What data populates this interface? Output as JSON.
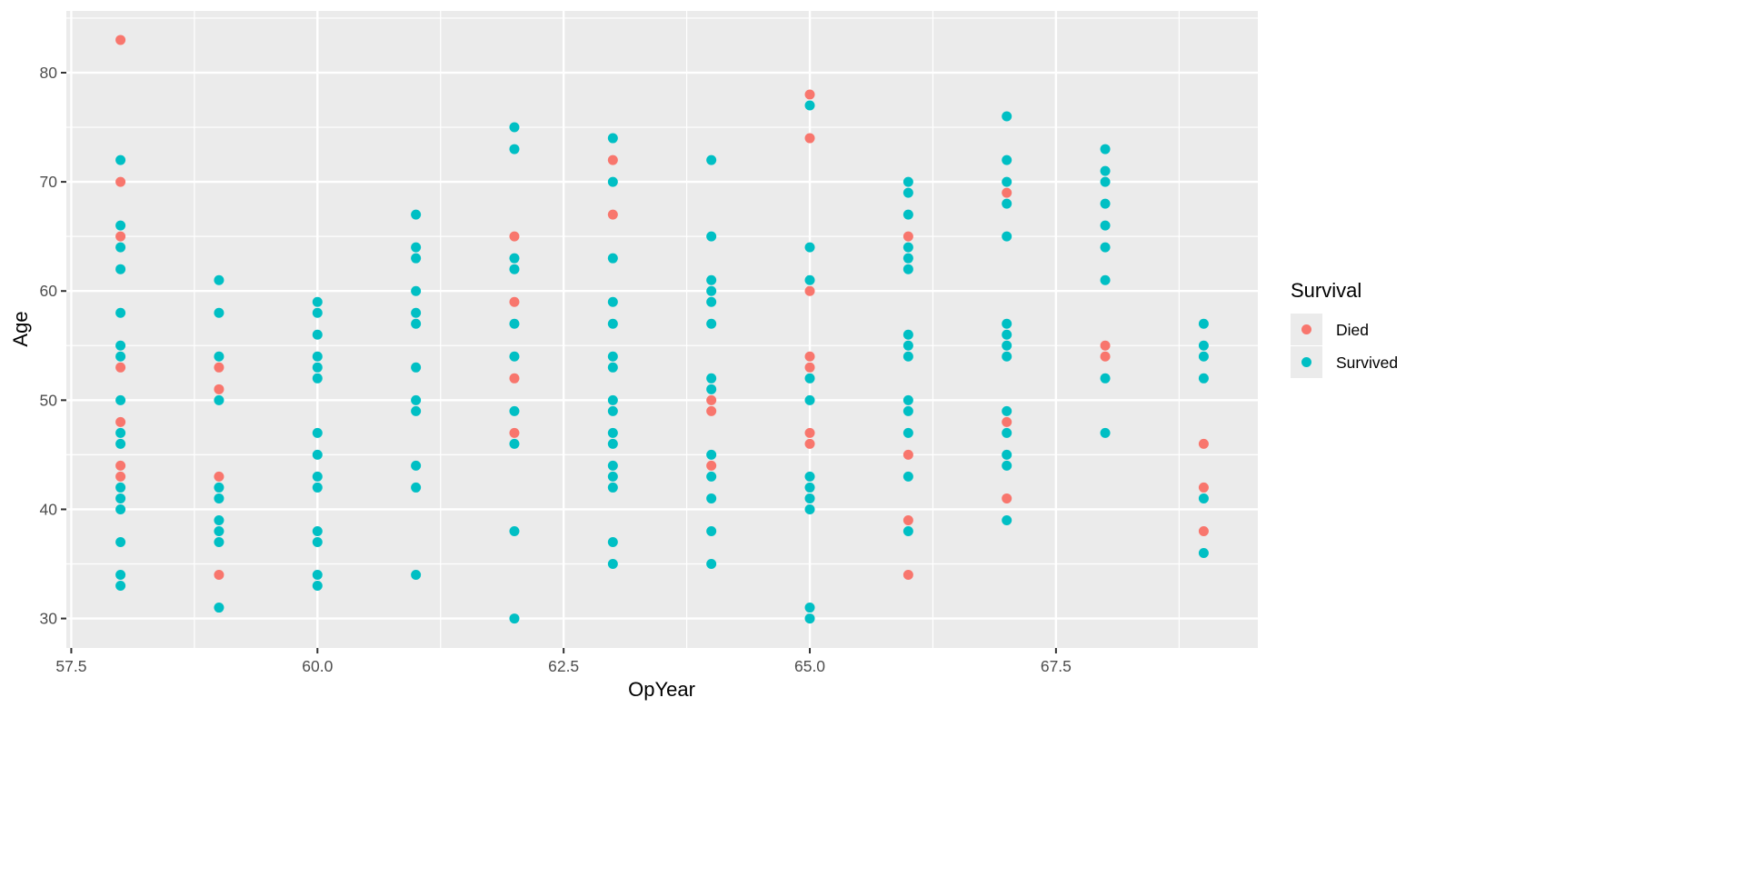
{
  "chart_data": {
    "type": "scatter",
    "title": "",
    "xlabel": "OpYear",
    "ylabel": "Age",
    "xlim": [
      57.45,
      69.55
    ],
    "ylim": [
      27.3,
      85.66
    ],
    "xticks": [
      57.5,
      60.0,
      62.5,
      65.0,
      67.5
    ],
    "xtick_labels": [
      "57.5",
      "60.0",
      "62.5",
      "65.0",
      "67.5"
    ],
    "yticks": [
      30,
      40,
      50,
      60,
      70,
      80
    ],
    "ytick_labels": [
      "30",
      "40",
      "50",
      "60",
      "70",
      "80"
    ],
    "grid": true,
    "legend": {
      "title": "Survival",
      "placement": "right",
      "entries": [
        "Died",
        "Survived"
      ]
    },
    "colors": {
      "Died": "#F8766D",
      "Survived": "#00BFC4",
      "panel": "#EBEBEB",
      "grid": "#FFFFFF"
    },
    "series": [
      {
        "name": "Died",
        "points": [
          [
            58,
            83
          ],
          [
            58,
            70
          ],
          [
            58,
            65
          ],
          [
            58,
            53
          ],
          [
            58,
            48
          ],
          [
            58,
            44
          ],
          [
            58,
            43
          ],
          [
            59,
            53
          ],
          [
            59,
            51
          ],
          [
            59,
            43
          ],
          [
            59,
            34
          ],
          [
            62,
            65
          ],
          [
            62,
            59
          ],
          [
            62,
            52
          ],
          [
            62,
            47
          ],
          [
            63,
            72
          ],
          [
            63,
            67
          ],
          [
            64,
            50
          ],
          [
            64,
            49
          ],
          [
            64,
            44
          ],
          [
            65,
            78
          ],
          [
            65,
            74
          ],
          [
            65,
            60
          ],
          [
            65,
            54
          ],
          [
            65,
            53
          ],
          [
            65,
            47
          ],
          [
            65,
            46
          ],
          [
            66,
            65
          ],
          [
            66,
            45
          ],
          [
            66,
            39
          ],
          [
            66,
            34
          ],
          [
            67,
            69
          ],
          [
            67,
            48
          ],
          [
            67,
            41
          ],
          [
            68,
            55
          ],
          [
            68,
            54
          ],
          [
            69,
            46
          ],
          [
            69,
            42
          ],
          [
            69,
            38
          ]
        ]
      },
      {
        "name": "Survived",
        "points": [
          [
            58,
            72
          ],
          [
            58,
            66
          ],
          [
            58,
            64
          ],
          [
            58,
            62
          ],
          [
            58,
            58
          ],
          [
            58,
            55
          ],
          [
            58,
            54
          ],
          [
            58,
            50
          ],
          [
            58,
            47
          ],
          [
            58,
            46
          ],
          [
            58,
            42
          ],
          [
            58,
            41
          ],
          [
            58,
            40
          ],
          [
            58,
            37
          ],
          [
            58,
            34
          ],
          [
            58,
            33
          ],
          [
            59,
            61
          ],
          [
            59,
            58
          ],
          [
            59,
            54
          ],
          [
            59,
            50
          ],
          [
            59,
            42
          ],
          [
            59,
            41
          ],
          [
            59,
            39
          ],
          [
            59,
            38
          ],
          [
            59,
            37
          ],
          [
            59,
            31
          ],
          [
            60,
            59
          ],
          [
            60,
            58
          ],
          [
            60,
            56
          ],
          [
            60,
            54
          ],
          [
            60,
            53
          ],
          [
            60,
            52
          ],
          [
            60,
            47
          ],
          [
            60,
            45
          ],
          [
            60,
            43
          ],
          [
            60,
            42
          ],
          [
            60,
            38
          ],
          [
            60,
            37
          ],
          [
            60,
            34
          ],
          [
            60,
            33
          ],
          [
            61,
            67
          ],
          [
            61,
            64
          ],
          [
            61,
            63
          ],
          [
            61,
            60
          ],
          [
            61,
            58
          ],
          [
            61,
            57
          ],
          [
            61,
            53
          ],
          [
            61,
            50
          ],
          [
            61,
            49
          ],
          [
            61,
            44
          ],
          [
            61,
            42
          ],
          [
            61,
            34
          ],
          [
            62,
            75
          ],
          [
            62,
            73
          ],
          [
            62,
            63
          ],
          [
            62,
            62
          ],
          [
            62,
            57
          ],
          [
            62,
            54
          ],
          [
            62,
            49
          ],
          [
            62,
            46
          ],
          [
            62,
            38
          ],
          [
            62,
            30
          ],
          [
            63,
            74
          ],
          [
            63,
            70
          ],
          [
            63,
            63
          ],
          [
            63,
            59
          ],
          [
            63,
            57
          ],
          [
            63,
            54
          ],
          [
            63,
            53
          ],
          [
            63,
            50
          ],
          [
            63,
            49
          ],
          [
            63,
            47
          ],
          [
            63,
            46
          ],
          [
            63,
            44
          ],
          [
            63,
            43
          ],
          [
            63,
            42
          ],
          [
            63,
            37
          ],
          [
            63,
            35
          ],
          [
            64,
            72
          ],
          [
            64,
            65
          ],
          [
            64,
            61
          ],
          [
            64,
            60
          ],
          [
            64,
            59
          ],
          [
            64,
            57
          ],
          [
            64,
            52
          ],
          [
            64,
            51
          ],
          [
            64,
            45
          ],
          [
            64,
            43
          ],
          [
            64,
            41
          ],
          [
            64,
            38
          ],
          [
            64,
            35
          ],
          [
            65,
            77
          ],
          [
            65,
            64
          ],
          [
            65,
            61
          ],
          [
            65,
            52
          ],
          [
            65,
            50
          ],
          [
            65,
            43
          ],
          [
            65,
            42
          ],
          [
            65,
            41
          ],
          [
            65,
            40
          ],
          [
            65,
            31
          ],
          [
            65,
            30
          ],
          [
            66,
            70
          ],
          [
            66,
            69
          ],
          [
            66,
            67
          ],
          [
            66,
            64
          ],
          [
            66,
            63
          ],
          [
            66,
            62
          ],
          [
            66,
            56
          ],
          [
            66,
            55
          ],
          [
            66,
            54
          ],
          [
            66,
            50
          ],
          [
            66,
            49
          ],
          [
            66,
            47
          ],
          [
            66,
            43
          ],
          [
            66,
            38
          ],
          [
            67,
            76
          ],
          [
            67,
            72
          ],
          [
            67,
            70
          ],
          [
            67,
            68
          ],
          [
            67,
            65
          ],
          [
            67,
            57
          ],
          [
            67,
            56
          ],
          [
            67,
            55
          ],
          [
            67,
            54
          ],
          [
            67,
            49
          ],
          [
            67,
            47
          ],
          [
            67,
            45
          ],
          [
            67,
            44
          ],
          [
            67,
            39
          ],
          [
            68,
            73
          ],
          [
            68,
            71
          ],
          [
            68,
            70
          ],
          [
            68,
            68
          ],
          [
            68,
            66
          ],
          [
            68,
            64
          ],
          [
            68,
            61
          ],
          [
            68,
            52
          ],
          [
            68,
            47
          ],
          [
            69,
            57
          ],
          [
            69,
            55
          ],
          [
            69,
            54
          ],
          [
            69,
            52
          ],
          [
            69,
            41
          ],
          [
            69,
            36
          ]
        ]
      }
    ]
  }
}
